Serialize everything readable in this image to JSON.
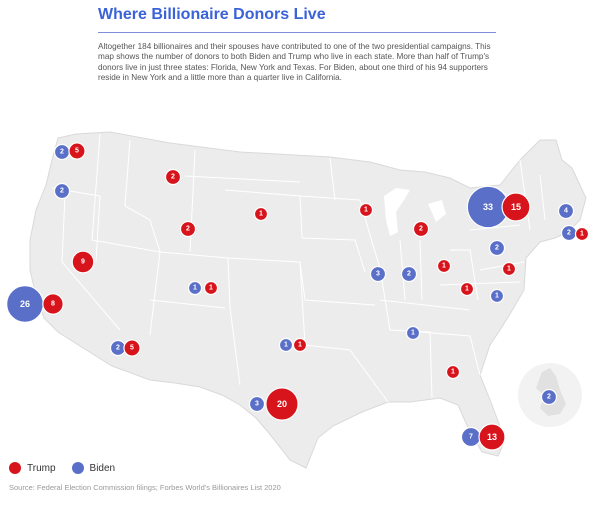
{
  "header": {
    "title": "Where Billionaire Donors Live",
    "intro": "Altogether 184 billionaires and their spouses have contributed to one of the two presidential campaigns. This map shows the number of donors to both Biden and Trump who live in each state. More than half of Trump's donors live in just three states: Florida, New York and Texas. For Biden, about one third of his 94 supporters reside in New York and a little more than a quarter live in California."
  },
  "colors": {
    "trump": "#d7141b",
    "biden": "#5a6fc7",
    "land": "#ececec",
    "border": "#ffffff"
  },
  "legend": [
    {
      "label": "Trump",
      "party": "trump"
    },
    {
      "label": "Biden",
      "party": "biden"
    }
  ],
  "source": "Source: Federal Election Commission filings; Forbes World's Billionaires List 2020",
  "bubbles": [
    {
      "region": "Washington",
      "party": "biden",
      "value": 2
    },
    {
      "region": "Washington",
      "party": "trump",
      "value": 5
    },
    {
      "region": "Oregon",
      "party": "biden",
      "value": 2
    },
    {
      "region": "Montana",
      "party": "trump",
      "value": 2
    },
    {
      "region": "Wyoming",
      "party": "trump",
      "value": 2
    },
    {
      "region": "South Dakota",
      "party": "trump",
      "value": 1
    },
    {
      "region": "Nevada",
      "party": "trump",
      "value": 9
    },
    {
      "region": "California",
      "party": "biden",
      "value": 26
    },
    {
      "region": "California",
      "party": "trump",
      "value": 8
    },
    {
      "region": "Colorado",
      "party": "biden",
      "value": 1
    },
    {
      "region": "Colorado",
      "party": "trump",
      "value": 1
    },
    {
      "region": "Arizona",
      "party": "biden",
      "value": 2
    },
    {
      "region": "Arizona",
      "party": "trump",
      "value": 5
    },
    {
      "region": "Oklahoma",
      "party": "biden",
      "value": 1
    },
    {
      "region": "Oklahoma",
      "party": "trump",
      "value": 1
    },
    {
      "region": "Texas",
      "party": "biden",
      "value": 3
    },
    {
      "region": "Texas",
      "party": "trump",
      "value": 20
    },
    {
      "region": "Wisconsin",
      "party": "trump",
      "value": 1
    },
    {
      "region": "Michigan",
      "party": "trump",
      "value": 2
    },
    {
      "region": "Illinois",
      "party": "biden",
      "value": 3
    },
    {
      "region": "Indiana",
      "party": "biden",
      "value": 2
    },
    {
      "region": "Ohio",
      "party": "trump",
      "value": 1
    },
    {
      "region": "West Virginia",
      "party": "trump",
      "value": 1
    },
    {
      "region": "Tennessee",
      "party": "biden",
      "value": 1
    },
    {
      "region": "Georgia",
      "party": "trump",
      "value": 1
    },
    {
      "region": "New York",
      "party": "biden",
      "value": 33
    },
    {
      "region": "New York",
      "party": "trump",
      "value": 15
    },
    {
      "region": "Massachusetts",
      "party": "biden",
      "value": 4
    },
    {
      "region": "Connecticut",
      "party": "biden",
      "value": 2
    },
    {
      "region": "Connecticut",
      "party": "trump",
      "value": 1
    },
    {
      "region": "Pennsylvania",
      "party": "biden",
      "value": 2
    },
    {
      "region": "New Jersey",
      "party": "trump",
      "value": 1
    },
    {
      "region": "Maryland",
      "party": "biden",
      "value": 1
    },
    {
      "region": "Florida",
      "party": "biden",
      "value": 7
    },
    {
      "region": "Florida",
      "party": "trump",
      "value": 13
    },
    {
      "region": "United Kingdom",
      "party": "biden",
      "value": 2
    }
  ]
}
